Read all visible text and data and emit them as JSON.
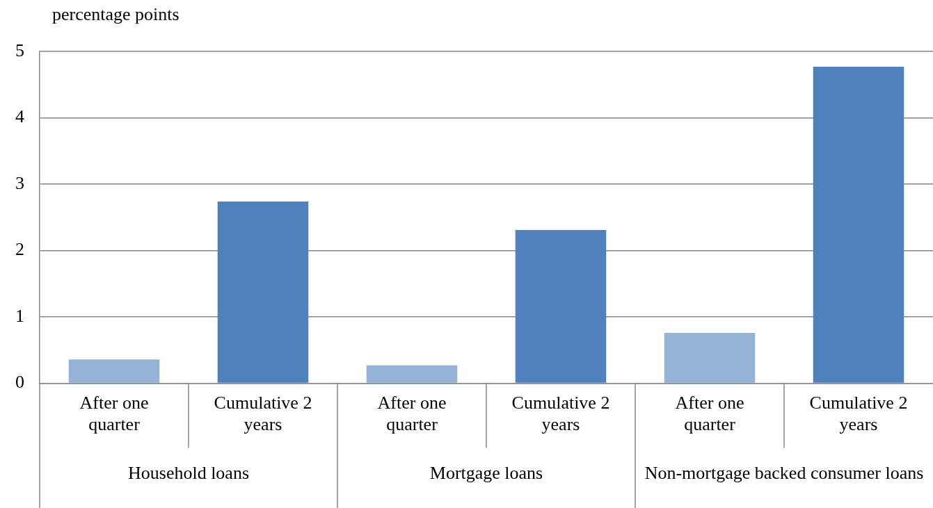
{
  "chart_data": {
    "type": "bar",
    "ylabel": "percentage points",
    "categories": [
      "After one quarter",
      "Cumulative 2 years",
      "After one quarter",
      "Cumulative 2 years",
      "After one quarter",
      "Cumulative 2 years"
    ],
    "values": [
      0.36,
      2.74,
      0.27,
      2.31,
      0.76,
      4.77
    ],
    "colors": [
      "#95b3d7",
      "#4f81bd",
      "#95b3d7",
      "#4f81bd",
      "#95b3d7",
      "#4f81bd"
    ],
    "annotations": [
      "Household loans",
      "Mortgage loans",
      "Non-mortgage backed consumer loans"
    ],
    "ylim": [
      0,
      5
    ],
    "yticks": [
      0,
      1,
      2,
      3,
      4,
      5
    ],
    "grid": "y",
    "legend": false
  }
}
